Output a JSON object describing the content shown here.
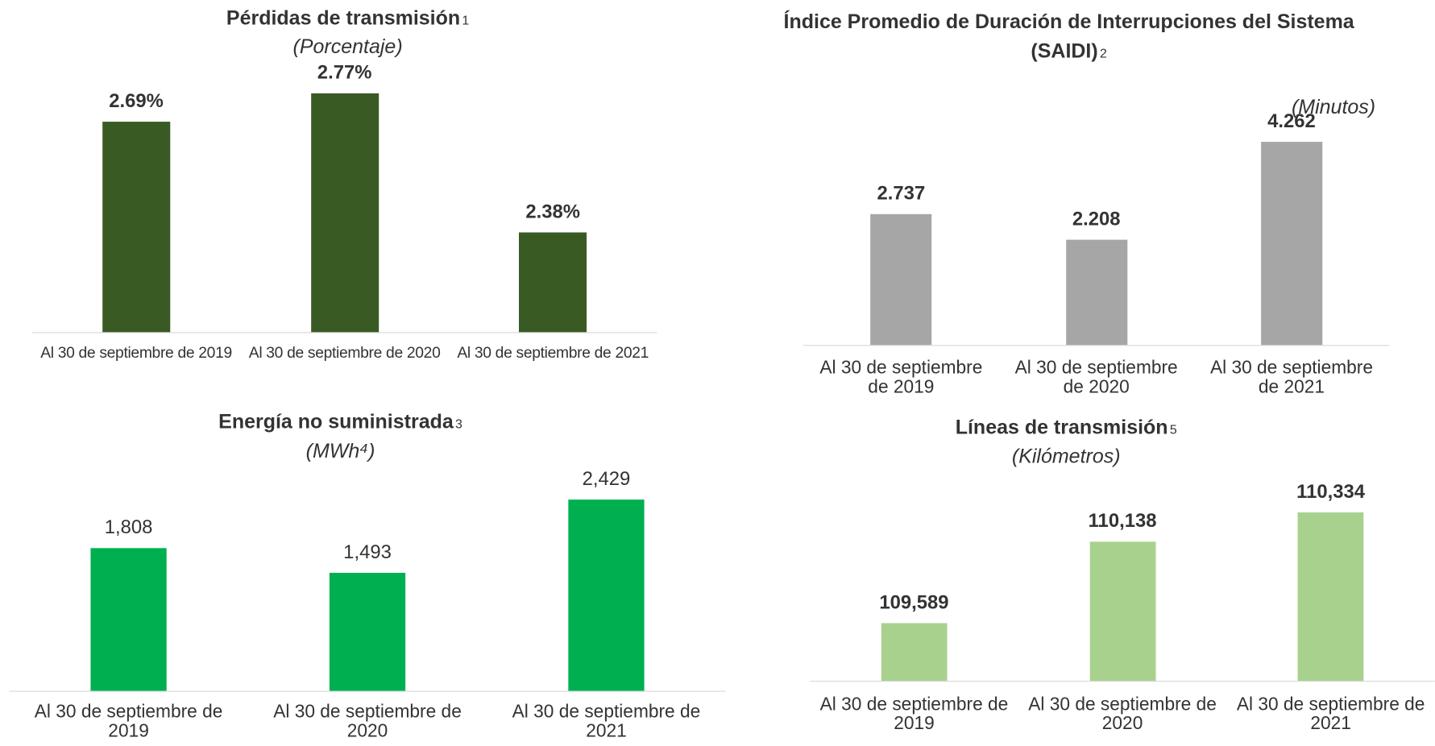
{
  "chart_data": [
    {
      "type": "bar",
      "title": "Pérdidas de transmisión",
      "title_note": "1",
      "subtitle": "(Porcentaje)",
      "categories": [
        "Al 30 de septiembre de 2019",
        "Al 30 de septiembre de 2020",
        "Al 30 de septiembre de 2021"
      ],
      "values": [
        2.69,
        2.77,
        2.38
      ],
      "value_labels": [
        "2.69%",
        "2.77%",
        "2.38%"
      ],
      "color": "#3a5a24",
      "ylim": [
        2.1,
        2.8
      ]
    },
    {
      "type": "bar",
      "title": "Índice Promedio de Duración de Interrupciones del Sistema (SAIDI)",
      "title_note": "2",
      "subtitle": "(Minutos)",
      "categories": [
        "Al 30 de septiembre de 2019",
        "Al 30 de septiembre de 2020",
        "Al 30 de septiembre de 2021"
      ],
      "values": [
        2737,
        2208,
        4262
      ],
      "value_labels": [
        "2.737",
        "2.208",
        "4.262"
      ],
      "color": "#a6a6a6",
      "ylim": [
        0,
        5300
      ]
    },
    {
      "type": "bar",
      "title": "Energía no suministrada",
      "title_note": "3",
      "subtitle": "(MWh⁴)",
      "categories": [
        "Al 30 de septiembre de 2019",
        "Al 30 de septiembre de 2020",
        "Al 30 de septiembre de 2021"
      ],
      "values": [
        1808,
        1493,
        2429
      ],
      "value_labels": [
        "1,808",
        "1,493",
        "2,429"
      ],
      "color": "#00b050",
      "ylim": [
        0,
        2900
      ]
    },
    {
      "type": "bar",
      "title": "Líneas de transmisión",
      "title_note": "5",
      "subtitle": "(Kilómetros)",
      "categories": [
        "Al 30 de septiembre de 2019",
        "Al 30 de septiembre de 2020",
        "Al 30 de septiembre de 2021"
      ],
      "values": [
        109589,
        110138,
        110334
      ],
      "value_labels": [
        "109,589",
        "110,138",
        "110,334"
      ],
      "color": "#a9d18e",
      "ylim": [
        109200,
        110500
      ]
    }
  ]
}
